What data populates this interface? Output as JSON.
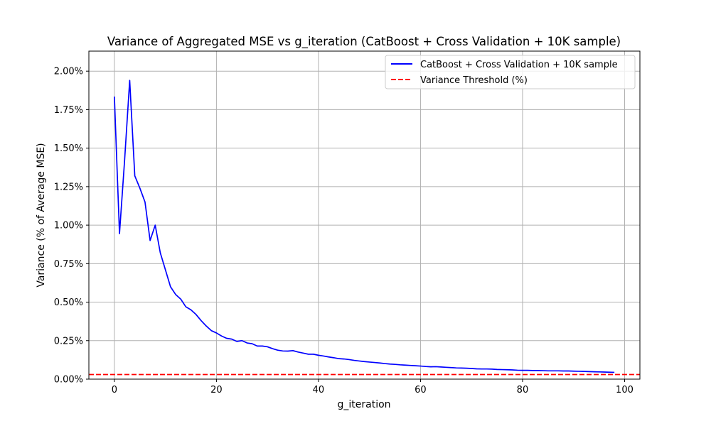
{
  "chart_data": {
    "type": "line",
    "title": "Variance of Aggregated MSE vs g_iteration (CatBoost + Cross Validation + 10K sample)",
    "xlabel": "g_iteration",
    "ylabel": "Variance (% of Average MSE)",
    "xlim": [
      -5,
      103
    ],
    "ylim": [
      0,
      0.0213
    ],
    "x_ticks": [
      0,
      20,
      40,
      60,
      80,
      100
    ],
    "x_tick_labels": [
      "0",
      "20",
      "40",
      "60",
      "80",
      "100"
    ],
    "y_ticks": [
      0,
      0.0025,
      0.005,
      0.0075,
      0.01,
      0.0125,
      0.015,
      0.0175,
      0.02
    ],
    "y_tick_labels": [
      "0.00%",
      "0.25%",
      "0.50%",
      "0.75%",
      "1.00%",
      "1.25%",
      "1.50%",
      "1.75%",
      "2.00%"
    ],
    "grid": true,
    "legend_position": "top-right",
    "colors": {
      "series": "#0000ff",
      "threshold": "#ff0000",
      "grid": "#b0b0b0",
      "axes": "#000000"
    },
    "series": [
      {
        "name": "CatBoost + Cross Validation + 10K sample",
        "style": "solid",
        "x": [
          0,
          1,
          2,
          3,
          4,
          5,
          6,
          7,
          8,
          9,
          10,
          11,
          12,
          13,
          14,
          15,
          16,
          17,
          18,
          19,
          20,
          21,
          22,
          23,
          24,
          25,
          26,
          27,
          28,
          29,
          30,
          31,
          32,
          33,
          34,
          35,
          36,
          37,
          38,
          39,
          40,
          41,
          42,
          43,
          44,
          45,
          46,
          47,
          48,
          49,
          50,
          51,
          52,
          53,
          54,
          55,
          56,
          57,
          58,
          59,
          60,
          61,
          62,
          63,
          64,
          65,
          66,
          67,
          68,
          69,
          70,
          71,
          72,
          73,
          74,
          75,
          76,
          77,
          78,
          79,
          80,
          81,
          82,
          83,
          84,
          85,
          86,
          87,
          88,
          89,
          90,
          91,
          92,
          93,
          94,
          95,
          96,
          97,
          98
        ],
        "y": [
          0.01835,
          0.00945,
          0.0142,
          0.0194,
          0.0132,
          0.0124,
          0.0115,
          0.009,
          0.01,
          0.0082,
          0.0071,
          0.006,
          0.0055,
          0.0052,
          0.0047,
          0.0045,
          0.0042,
          0.0038,
          0.00345,
          0.00315,
          0.003,
          0.0028,
          0.00265,
          0.0026,
          0.00245,
          0.0025,
          0.00235,
          0.0023,
          0.00215,
          0.00215,
          0.0021,
          0.00198,
          0.00188,
          0.00183,
          0.00182,
          0.00185,
          0.00176,
          0.00169,
          0.00162,
          0.00162,
          0.00155,
          0.0015,
          0.00144,
          0.00139,
          0.00133,
          0.00131,
          0.00127,
          0.00122,
          0.00118,
          0.00114,
          0.00111,
          0.00108,
          0.00105,
          0.00101,
          0.00098,
          0.00096,
          0.00093,
          0.00091,
          0.00089,
          0.00087,
          0.00085,
          0.00082,
          0.0008,
          0.00081,
          0.00079,
          0.00077,
          0.00075,
          0.00073,
          0.00072,
          0.00071,
          0.00069,
          0.00067,
          0.00066,
          0.00066,
          0.00065,
          0.00063,
          0.00062,
          0.00061,
          0.0006,
          0.00058,
          0.00057,
          0.00057,
          0.00056,
          0.00056,
          0.00055,
          0.00054,
          0.00054,
          0.00054,
          0.00053,
          0.00053,
          0.00052,
          0.00051,
          0.0005,
          0.00049,
          0.00048,
          0.00047,
          0.00046,
          0.00045,
          0.00044
        ]
      },
      {
        "name": "Variance Threshold (%)",
        "style": "dashed",
        "y_constant": 0.0003
      }
    ]
  }
}
